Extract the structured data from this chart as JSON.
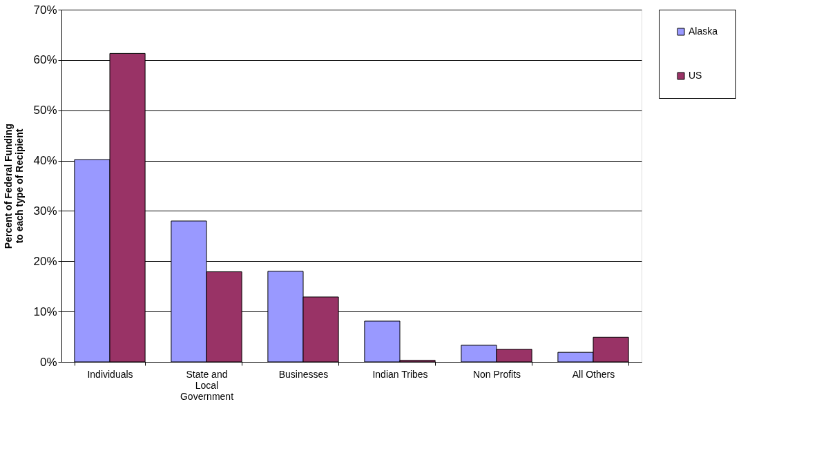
{
  "chart_data": {
    "type": "bar",
    "ylabel": "Percent of Federal Funding\nto each type of Recipient",
    "categories": [
      "Individuals",
      "State and Local Government",
      "Businesses",
      "Indian Tribes",
      "Non Profits",
      "All Others"
    ],
    "series": [
      {
        "name": "Alaska",
        "color": "#9999ff",
        "values": [
          40.2,
          28.0,
          18.0,
          8.1,
          3.3,
          1.9
        ]
      },
      {
        "name": "US",
        "color": "#993366",
        "values": [
          61.3,
          17.9,
          12.9,
          0.3,
          2.5,
          4.9
        ]
      }
    ],
    "ylim": [
      0,
      70
    ],
    "yticks": [
      {
        "value": 0,
        "label": "0%"
      },
      {
        "value": 10,
        "label": "10%"
      },
      {
        "value": 20,
        "label": "20%"
      },
      {
        "value": 30,
        "label": "30%"
      },
      {
        "value": 40,
        "label": "40%"
      },
      {
        "value": 50,
        "label": "50%"
      },
      {
        "value": 60,
        "label": "60%"
      },
      {
        "value": 70,
        "label": "70%"
      }
    ],
    "grid": "y",
    "legend": "right"
  }
}
